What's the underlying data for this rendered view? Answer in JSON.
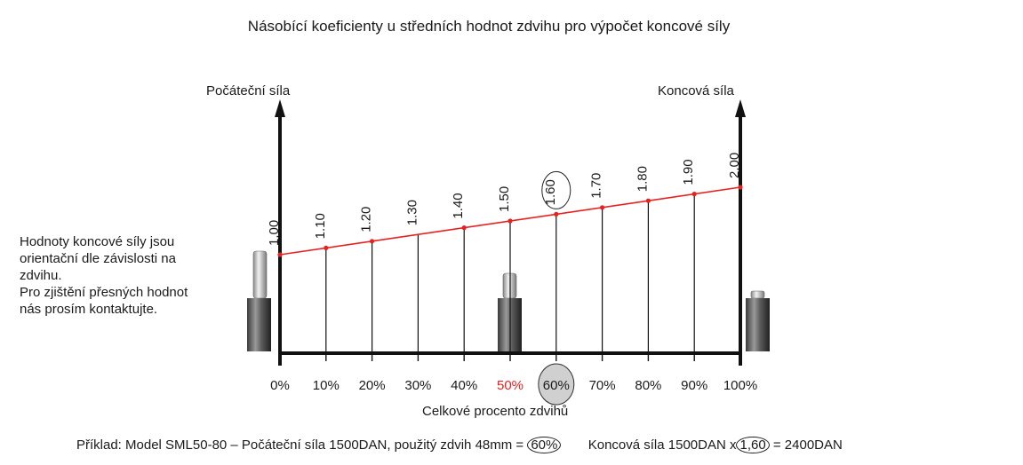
{
  "title": "Násobící koeficienty u středních hodnot zdvihu pro výpočet koncové síly",
  "axis_labels": {
    "left": "Počáteční síla",
    "right": "Koncová síla",
    "x_title": "Celkové procento zdvihů"
  },
  "note": {
    "lines": [
      "Hodnoty koncové síly jsou",
      "orientační dle závislosti na",
      "zdvihu.",
      "Pro zjištění přesných hodnot",
      "nás prosím kontaktujte."
    ]
  },
  "chart_data": {
    "type": "line",
    "x": [
      "0%",
      "10%",
      "20%",
      "30%",
      "40%",
      "50%",
      "60%",
      "70%",
      "80%",
      "90%",
      "100%"
    ],
    "value_labels": [
      "1.00",
      "1.10",
      "1.20",
      "1.30",
      "1.40",
      "1.50",
      "1.60",
      "1.70",
      "1.80",
      "1.90",
      "2.00"
    ],
    "values": [
      1.0,
      1.1,
      1.2,
      1.3,
      1.4,
      1.5,
      1.6,
      1.7,
      1.8,
      1.9,
      2.0
    ],
    "points_marked": [
      true,
      true,
      true,
      false,
      true,
      true,
      true,
      true,
      true,
      true,
      true
    ],
    "highlight_tick_index": 5,
    "circled_index": 6,
    "line_color": "#e8201e",
    "highlight_color": "#e8201e",
    "circle_fill": "#d0d0d0"
  },
  "example": {
    "prefix": "Příklad: Model SML50-80 – Počáteční síla 1500DAN, použitý zdvih 48mm =",
    "stroke_circled": "60%",
    "result_prefix": "Koncová síla  1500DAN x",
    "factor_circled": "1,60",
    "result_suffix": "= 2400DAN"
  }
}
